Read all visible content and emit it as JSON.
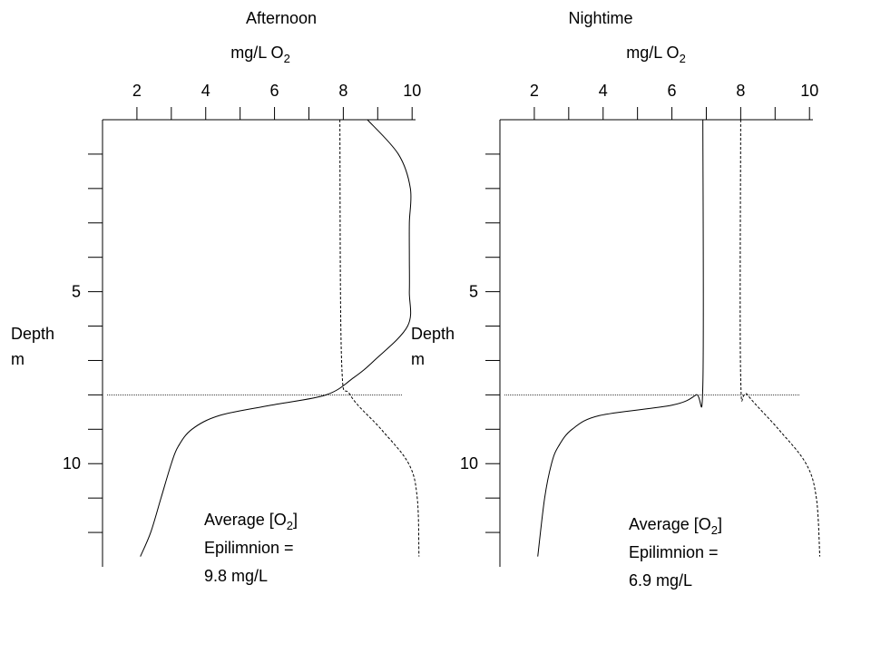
{
  "chart_data": [
    {
      "type": "line",
      "title": "Afternoon",
      "x_label": "mg/L O",
      "x_label_sub": "2",
      "y_label": [
        "Depth",
        "m"
      ],
      "xlim": [
        1,
        10.1
      ],
      "xticks": [
        2,
        4,
        6,
        8,
        10
      ],
      "xminorticks": [
        3,
        5,
        7,
        9
      ],
      "ylim": [
        0,
        13
      ],
      "yticks": [
        5,
        10
      ],
      "yminorticks": [
        1,
        2,
        3,
        4,
        6,
        7,
        8,
        9,
        11,
        12
      ],
      "thermocline_depth": 8,
      "series": [
        {
          "linestyle": "solid",
          "color": "#000000",
          "depth": [
            0,
            1,
            2,
            3,
            4,
            5,
            6,
            7,
            7.5,
            8,
            8.3,
            8.6,
            9,
            9.5,
            10,
            11,
            12,
            12.7
          ],
          "values": [
            8.7,
            9.6,
            9.95,
            9.92,
            9.92,
            9.92,
            9.87,
            8.9,
            8.3,
            7.5,
            5.9,
            4.4,
            3.6,
            3.2,
            3.0,
            2.7,
            2.4,
            2.1
          ]
        },
        {
          "linestyle": "dashed",
          "color": "#000000",
          "depth": [
            0,
            7,
            8,
            9,
            10,
            11,
            12.7
          ],
          "values": [
            7.9,
            7.95,
            8.2,
            9.1,
            9.9,
            10.15,
            10.2
          ]
        }
      ],
      "annotation_prefix": "Average [O",
      "annotation_sub": "2",
      "annotation_suffix": "]",
      "annotation_lines": [
        "Epilimnion =",
        "9.8 mg/L"
      ]
    },
    {
      "type": "line",
      "title": "Nightime",
      "x_label": "mg/L O",
      "x_label_sub": "2",
      "y_label": [
        "Depth",
        "m"
      ],
      "xlim": [
        1,
        10.1
      ],
      "xticks": [
        2,
        4,
        6,
        8,
        10
      ],
      "xminorticks": [
        3,
        5,
        7,
        9
      ],
      "ylim": [
        0,
        13
      ],
      "yticks": [
        5,
        10
      ],
      "yminorticks": [
        1,
        2,
        3,
        4,
        6,
        7,
        8,
        9,
        11,
        12
      ],
      "thermocline_depth": 8,
      "series": [
        {
          "linestyle": "solid",
          "color": "#000000",
          "depth": [
            0,
            7.7,
            8,
            8.3,
            8.6,
            9,
            9.5,
            10,
            11,
            12.7
          ],
          "values": [
            6.9,
            6.9,
            6.7,
            6.0,
            3.9,
            3.1,
            2.7,
            2.5,
            2.3,
            2.1
          ]
        },
        {
          "linestyle": "dashed",
          "color": "#000000",
          "depth": [
            0,
            7.5,
            8,
            9,
            10,
            11,
            12.7
          ],
          "values": [
            8.0,
            8.0,
            8.2,
            9.1,
            9.9,
            10.2,
            10.3
          ]
        }
      ],
      "annotation_prefix": "Average [O",
      "annotation_sub": "2",
      "annotation_suffix": "]",
      "annotation_lines": [
        "Epilimnion =",
        "6.9 mg/L"
      ]
    }
  ]
}
